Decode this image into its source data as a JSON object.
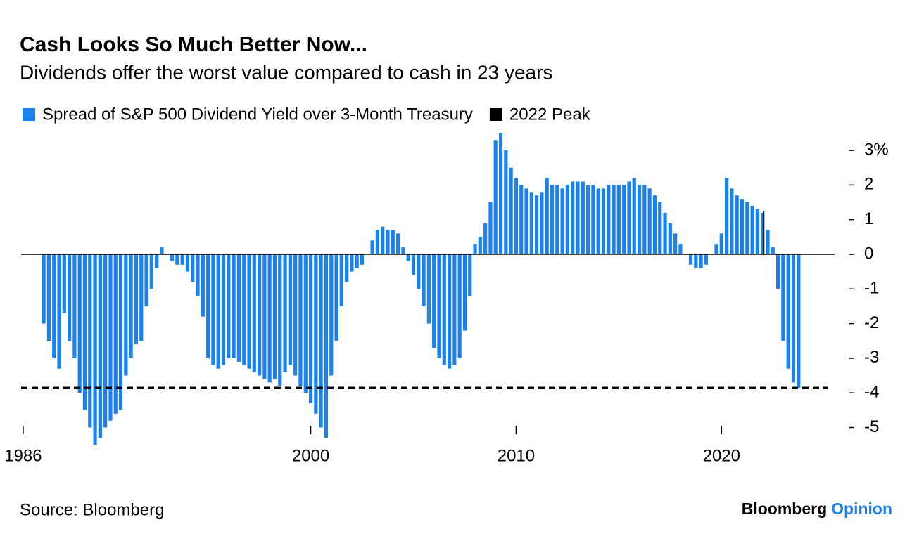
{
  "chart_data": {
    "type": "bar",
    "title": "Cash Looks So Much Better Now...",
    "subtitle": "Dividends offer the worst value compared to cash in 23 years",
    "source": "Source: Bloomberg",
    "brand": "Bloomberg",
    "brand_suffix": "Opinion",
    "xlim": [
      1985.9,
      2025.3
    ],
    "xticks": [
      1986,
      2000,
      2010,
      2020
    ],
    "ylim": [
      -5.7,
      3.6
    ],
    "yticks": [
      {
        "value": 3,
        "label": "3%"
      },
      2,
      1,
      0,
      -1,
      -2,
      -3,
      -4,
      -5
    ],
    "hline": -3.85,
    "series": [
      {
        "name": "Spread of S&P 500 Dividend Yield over 3-Month Treasury",
        "color": "#1a82f0",
        "x": [
          1987,
          1987.25,
          1987.5,
          1987.75,
          1988,
          1988.25,
          1988.5,
          1988.75,
          1989,
          1989.25,
          1989.5,
          1989.75,
          1990,
          1990.25,
          1990.5,
          1990.75,
          1991,
          1991.25,
          1991.5,
          1991.75,
          1992,
          1992.25,
          1992.5,
          1992.75,
          1993,
          1993.25,
          1993.5,
          1993.75,
          1994,
          1994.25,
          1994.5,
          1994.75,
          1995,
          1995.25,
          1995.5,
          1995.75,
          1996,
          1996.25,
          1996.5,
          1996.75,
          1997,
          1997.25,
          1997.5,
          1997.75,
          1998,
          1998.25,
          1998.5,
          1998.75,
          1999,
          1999.25,
          1999.5,
          1999.75,
          2000,
          2000.25,
          2000.5,
          2000.75,
          2001,
          2001.25,
          2001.5,
          2001.75,
          2002,
          2002.25,
          2002.5,
          2002.75,
          2003,
          2003.25,
          2003.5,
          2003.75,
          2004,
          2004.25,
          2004.5,
          2004.75,
          2005,
          2005.25,
          2005.5,
          2005.75,
          2006,
          2006.25,
          2006.5,
          2006.75,
          2007,
          2007.25,
          2007.5,
          2007.75,
          2008,
          2008.25,
          2008.5,
          2008.75,
          2009,
          2009.25,
          2009.5,
          2009.75,
          2010,
          2010.25,
          2010.5,
          2010.75,
          2011,
          2011.25,
          2011.5,
          2011.75,
          2012,
          2012.25,
          2012.5,
          2012.75,
          2013,
          2013.25,
          2013.5,
          2013.75,
          2014,
          2014.25,
          2014.5,
          2014.75,
          2015,
          2015.25,
          2015.5,
          2015.75,
          2016,
          2016.25,
          2016.5,
          2016.75,
          2017,
          2017.25,
          2017.5,
          2017.75,
          2018,
          2018.25,
          2018.5,
          2018.75,
          2019,
          2019.25,
          2019.5,
          2019.75,
          2020,
          2020.25,
          2020.5,
          2020.75,
          2021,
          2021.25,
          2021.5,
          2021.75,
          2022,
          2022.25,
          2022.5,
          2022.75,
          2023,
          2023.25,
          2023.5,
          2023.75
        ],
        "values": [
          -2,
          -2.5,
          -3,
          -3.3,
          -1.7,
          -2.5,
          -3,
          -4,
          -4.5,
          -5,
          -5.5,
          -5.3,
          -5,
          -4.8,
          -4.6,
          -4.5,
          -3.5,
          -3,
          -2.6,
          -2.5,
          -1.5,
          -1,
          -0.4,
          0.2,
          0,
          -0.2,
          -0.3,
          -0.3,
          -0.5,
          -0.8,
          -1.2,
          -1.8,
          -3,
          -3.2,
          -3.3,
          -3.2,
          -3,
          -3,
          -3.1,
          -3.2,
          -3.3,
          -3.4,
          -3.5,
          -3.6,
          -3.7,
          -3.6,
          -3.8,
          -3.4,
          -3.2,
          -3.5,
          -3.8,
          -4,
          -4.3,
          -4.6,
          -5,
          -5.3,
          -3.5,
          -2.5,
          -1.5,
          -0.8,
          -0.5,
          -0.4,
          -0.3,
          0,
          0.4,
          0.7,
          0.8,
          0.7,
          0.7,
          0.6,
          0.2,
          -0.2,
          -0.6,
          -1,
          -1.5,
          -2,
          -2.7,
          -3,
          -3.2,
          -3.3,
          -3.2,
          -3,
          -2.2,
          -1.2,
          0.3,
          0.5,
          0.9,
          1.5,
          3.3,
          3.5,
          3,
          2.5,
          2.2,
          2,
          1.9,
          1.8,
          1.7,
          1.8,
          2.2,
          2,
          2,
          1.9,
          2,
          2.1,
          2.1,
          2.1,
          2,
          2,
          1.9,
          1.9,
          2,
          2,
          2,
          2,
          2.1,
          2.2,
          2,
          2,
          1.9,
          1.7,
          1.5,
          1.2,
          0.9,
          0.6,
          0.3,
          0,
          -0.3,
          -0.4,
          -0.4,
          -0.3,
          0,
          0.3,
          0.6,
          2.2,
          1.9,
          1.7,
          1.6,
          1.5,
          1.4,
          1.3,
          1.2,
          0.7,
          0.2,
          -1,
          -2.5,
          -3.3,
          -3.7,
          -3.85
        ]
      },
      {
        "name": "2022 Peak",
        "color": "#000000",
        "x": [
          2022.05
        ],
        "values": [
          1.25
        ]
      }
    ]
  }
}
